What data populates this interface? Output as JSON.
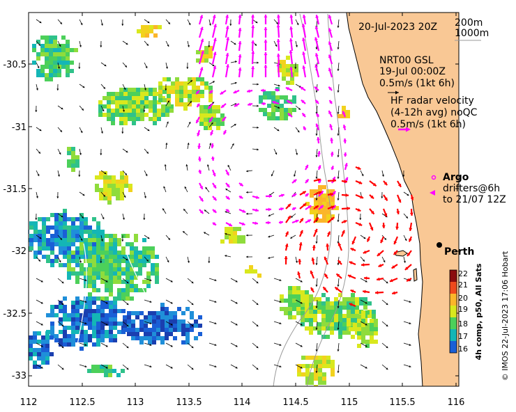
{
  "map": {
    "date_title": "20-Jul-2023 20Z",
    "isobaths": [
      "200m",
      "1000m"
    ],
    "model_label": [
      "NRT00 GSL",
      "19-Jul 00:00Z",
      "0.5m/s (1kt 6h)"
    ],
    "radar_label": [
      "HF radar velocity",
      "(4-12h avg) noQC",
      "0.5m/s (1kt 6h)"
    ],
    "argo_label": "Argo",
    "drifter_label": [
      "drifters@6h",
      "to 21/07 12Z"
    ],
    "city": "Perth",
    "x_ticks": [
      "112",
      "112.5",
      "113",
      "113.5",
      "114",
      "114.5",
      "115",
      "115.5",
      "116"
    ],
    "y_ticks": [
      "-30.5",
      "-31",
      "-31.5",
      "-32",
      "-32.5",
      "-33"
    ],
    "colorbar_ticks": [
      "22",
      "21",
      "20",
      "19",
      "18",
      "17",
      "16"
    ],
    "colorbar_title": "4h comp, p50, All Sats",
    "credit": "© IMOS 22-Jul-2023 17:06 Hobart",
    "colors": {
      "land": "#f9c895",
      "model_arrows": "#000000",
      "radar_arrows_north": "#ff00ff",
      "radar_arrows_south": "#ff0000",
      "argo": "#ff00ff",
      "isobath": "#9a9a9a"
    }
  }
}
